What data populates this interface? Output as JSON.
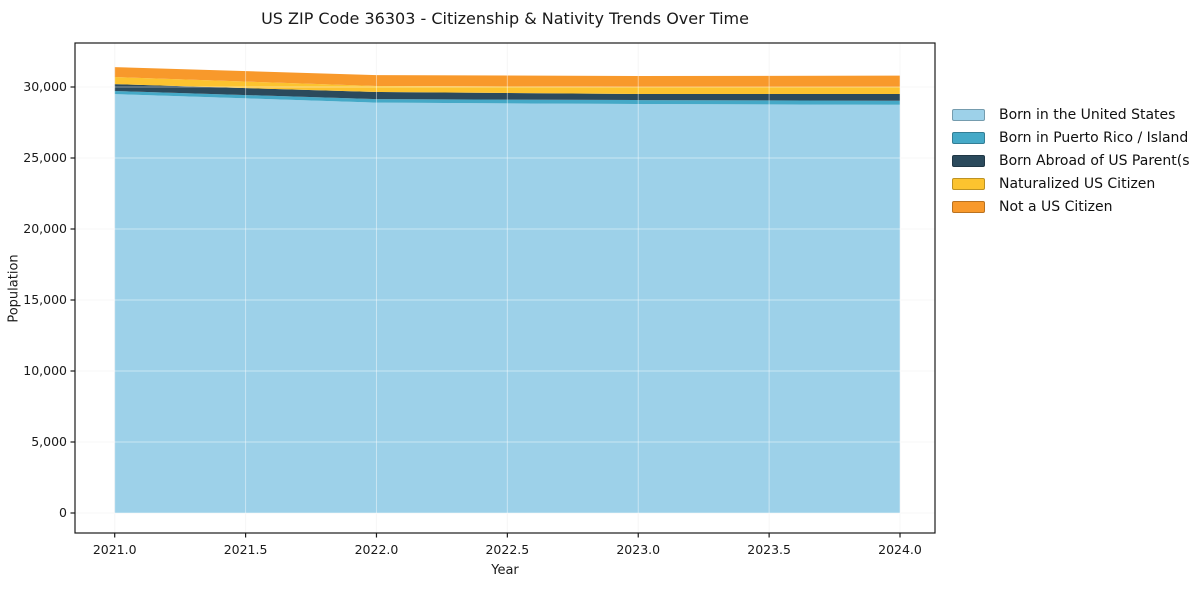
{
  "title": "US ZIP Code 36303 - Citizenship & Nativity Trends Over Time",
  "chart_data": {
    "type": "area",
    "stacked": true,
    "title": "US ZIP Code 36303 - Citizenship & Nativity Trends Over Time",
    "xlabel": "Year",
    "ylabel": "Population",
    "x": [
      2021,
      2022,
      2023,
      2024
    ],
    "series": [
      {
        "name": "Born in the United States",
        "color": "#9dd1e9",
        "values": [
          29500,
          28900,
          28800,
          28750
        ]
      },
      {
        "name": "Born in Puerto Rico / Islands",
        "color": "#45a9c7",
        "values": [
          220,
          250,
          280,
          280
        ]
      },
      {
        "name": "Born Abroad of US Parent(s)",
        "color": "#2b4a5c",
        "values": [
          480,
          500,
          430,
          480
        ]
      },
      {
        "name": "Naturalized US Citizen",
        "color": "#fcc32f",
        "values": [
          500,
          420,
          490,
          490
        ]
      },
      {
        "name": "Not a US Citizen",
        "color": "#f8992b",
        "values": [
          700,
          770,
          775,
          800
        ]
      }
    ],
    "x_ticks": [
      {
        "v": 2021.0,
        "label": "2021.0"
      },
      {
        "v": 2021.5,
        "label": "2021.5"
      },
      {
        "v": 2022.0,
        "label": "2022.0"
      },
      {
        "v": 2022.5,
        "label": "2022.5"
      },
      {
        "v": 2023.0,
        "label": "2023.0"
      },
      {
        "v": 2023.5,
        "label": "2023.5"
      },
      {
        "v": 2024.0,
        "label": "2024.0"
      }
    ],
    "y_ticks": [
      {
        "v": 0,
        "label": "0"
      },
      {
        "v": 5000,
        "label": "5,000"
      },
      {
        "v": 10000,
        "label": "10,000"
      },
      {
        "v": 15000,
        "label": "15,000"
      },
      {
        "v": 20000,
        "label": "20,000"
      },
      {
        "v": 25000,
        "label": "25,000"
      },
      {
        "v": 30000,
        "label": "30,000"
      }
    ],
    "xlim": [
      2020.85,
      2024.14
    ],
    "ylim": [
      -1408,
      33100
    ],
    "grid": true,
    "legend_position": "right-outside",
    "legend_entries": [
      "Born in the United States",
      "Born in Puerto Rico / Islands",
      "Born Abroad of US Parent(s)",
      "Naturalized US Citizen",
      "Not a US Citizen"
    ]
  },
  "colors": {
    "plot_border": "#1a1a1a",
    "grid_under": "#f0f0f0",
    "grid_over_rgba": "rgba(255,255,255,0.45)",
    "tick": "#1a1a1a",
    "background": "#ffffff"
  }
}
